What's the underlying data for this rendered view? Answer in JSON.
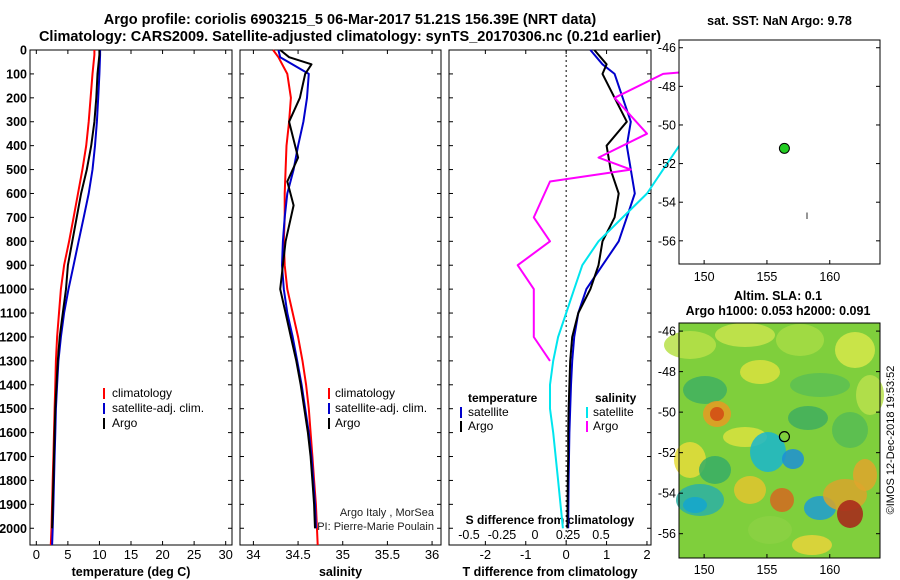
{
  "title": {
    "line1": "Argo profile: coriolis 6903215_5 06-Mar-2017 51.21S 156.39E (NRT data)",
    "line2": "Climatology: CARS2009. Satellite-adjusted climatology: synTS_20170306.nc (0.21d earlier)"
  },
  "colors": {
    "climatology": "#ff0000",
    "satellite": "#0000cc",
    "argo": "#000000",
    "sal_satellite": "#00e5ee",
    "sal_argo": "#ff00ff",
    "dot": "#22cc22"
  },
  "chart_data": [
    {
      "id": "temperature",
      "type": "line",
      "xlabel": "temperature (deg C)",
      "xlim": [
        -1,
        31
      ],
      "xticks": [
        0,
        5,
        10,
        15,
        20,
        25,
        30
      ],
      "ylim": [
        0,
        2070
      ],
      "yticks": [
        0,
        100,
        200,
        300,
        400,
        500,
        600,
        700,
        800,
        900,
        1000,
        1100,
        1200,
        1300,
        1400,
        1500,
        1600,
        1700,
        1800,
        1900,
        2000
      ],
      "legend": [
        "climatology",
        "satellite-adj. clim.",
        "Argo"
      ],
      "series": [
        {
          "name": "climatology",
          "color": "#ff0000",
          "x": [
            9.2,
            9.2,
            8.9,
            8.6,
            8.3,
            7.9,
            7.3,
            6.6,
            5.9,
            5.2,
            4.4,
            3.9,
            3.6,
            3.3,
            3.1,
            3.0,
            2.9,
            2.8,
            2.7,
            2.6,
            2.5,
            2.4,
            2.3
          ],
          "y": [
            0,
            20,
            100,
            200,
            300,
            400,
            500,
            600,
            700,
            800,
            900,
            1000,
            1100,
            1200,
            1300,
            1400,
            1500,
            1600,
            1700,
            1800,
            1900,
            2000,
            2070
          ]
        },
        {
          "name": "satellite-adj. clim.",
          "color": "#0000cc",
          "x": [
            10.1,
            10.1,
            10.0,
            9.8,
            9.6,
            9.3,
            8.9,
            8.3,
            7.5,
            6.7,
            5.9,
            5.1,
            4.4,
            3.9,
            3.5,
            3.3,
            3.1,
            3.0,
            2.9,
            2.8,
            2.7,
            2.6,
            2.5
          ],
          "y": [
            0,
            20,
            100,
            200,
            300,
            400,
            500,
            600,
            700,
            800,
            900,
            1000,
            1100,
            1200,
            1300,
            1400,
            1500,
            1600,
            1700,
            1800,
            1900,
            2000,
            2070
          ]
        },
        {
          "name": "Argo",
          "color": "#000000",
          "x": [
            10.0,
            10.0,
            9.7,
            9.5,
            9.2,
            8.7,
            8.0,
            7.1,
            6.4,
            5.7,
            5.0,
            4.7,
            4.2,
            3.7,
            3.4,
            3.2,
            3.0,
            2.9,
            2.8,
            2.7,
            2.6,
            2.5
          ],
          "y": [
            0,
            20,
            100,
            200,
            300,
            400,
            500,
            600,
            700,
            800,
            900,
            1000,
            1100,
            1200,
            1300,
            1400,
            1500,
            1600,
            1700,
            1800,
            1900,
            2000
          ]
        }
      ]
    },
    {
      "id": "salinity",
      "type": "line",
      "xlabel": "salinity",
      "xlim": [
        33.85,
        36.1
      ],
      "xticks": [
        34,
        34.5,
        35,
        35.5,
        36
      ],
      "ylim": [
        0,
        2070
      ],
      "legend": [
        "climatology",
        "satellite-adj. clim.",
        "Argo"
      ],
      "annotations": [
        "Argo Italy , MorSea",
        "PI: Pierre-Marie Poulain"
      ],
      "series": [
        {
          "name": "climatology",
          "color": "#ff0000",
          "x": [
            34.22,
            34.28,
            34.38,
            34.42,
            34.4,
            34.37,
            34.36,
            34.35,
            34.35,
            34.34,
            34.35,
            34.38,
            34.44,
            34.5,
            34.55,
            34.59,
            34.62,
            34.64,
            34.66,
            34.68,
            34.7,
            34.72
          ],
          "y": [
            0,
            30,
            100,
            200,
            300,
            400,
            500,
            600,
            700,
            800,
            900,
            1000,
            1100,
            1200,
            1300,
            1400,
            1500,
            1600,
            1700,
            1800,
            1900,
            2070
          ]
        },
        {
          "name": "satellite-adj. clim.",
          "color": "#0000cc",
          "x": [
            34.28,
            34.3,
            34.62,
            34.6,
            34.56,
            34.5,
            34.45,
            34.38,
            34.35,
            34.33,
            34.32,
            34.34,
            34.38,
            34.44,
            34.49,
            34.54,
            34.58,
            34.62,
            34.65,
            34.67,
            34.69,
            34.7
          ],
          "y": [
            0,
            30,
            100,
            200,
            300,
            400,
            500,
            600,
            700,
            800,
            900,
            1000,
            1100,
            1200,
            1300,
            1400,
            1500,
            1600,
            1700,
            1800,
            1900,
            2000
          ]
        },
        {
          "name": "Argo",
          "color": "#000000",
          "x": [
            34.3,
            34.4,
            34.65,
            34.58,
            34.52,
            34.4,
            34.5,
            34.38,
            34.45,
            34.36,
            34.33,
            34.3,
            34.36,
            34.42,
            34.48,
            34.53,
            34.57,
            34.61,
            34.64,
            34.66,
            34.68,
            34.69
          ],
          "y": [
            0,
            30,
            60,
            100,
            200,
            300,
            450,
            550,
            650,
            800,
            900,
            1000,
            1100,
            1200,
            1300,
            1400,
            1500,
            1600,
            1700,
            1800,
            1900,
            2000
          ]
        }
      ]
    },
    {
      "id": "difference",
      "type": "line",
      "xlabel": "T difference from climatology",
      "xlabel2": "S difference from climatology",
      "xlim": [
        -2.9,
        2.1
      ],
      "xticks": [
        -2,
        -1,
        0,
        1,
        2
      ],
      "xticks2_labels": [
        "-0.5",
        "-0.25",
        "0",
        "0.25",
        "0.5"
      ],
      "ylim": [
        0,
        2070
      ],
      "legend_temperature_title": "temperature",
      "legend_salinity_title": "salinity",
      "legend": [
        "satellite",
        "Argo"
      ],
      "series": [
        {
          "name": "satellite",
          "group": "temperature",
          "color": "#0000cc",
          "x": [
            0.6,
            0.9,
            1.2,
            1.4,
            1.6,
            1.5,
            1.6,
            1.7,
            1.5,
            1.3,
            0.9,
            0.5,
            0.3,
            0.2,
            0.15,
            0.12,
            0.1,
            0.08,
            0.07,
            0.06,
            0.05
          ],
          "y": [
            0,
            60,
            100,
            200,
            300,
            400,
            500,
            600,
            700,
            800,
            900,
            1000,
            1100,
            1200,
            1300,
            1400,
            1500,
            1600,
            1700,
            1800,
            2000
          ]
        },
        {
          "name": "Argo",
          "group": "temperature",
          "color": "#000000",
          "x": [
            0.7,
            1.0,
            0.9,
            1.2,
            1.5,
            1.0,
            1.1,
            1.3,
            1.2,
            0.9,
            0.8,
            0.6,
            0.3,
            0.15,
            0.1,
            0.08,
            0.06,
            0.05,
            0.05,
            0.04,
            0.03
          ],
          "y": [
            0,
            60,
            100,
            200,
            300,
            400,
            500,
            600,
            700,
            800,
            900,
            1000,
            1100,
            1200,
            1300,
            1400,
            1500,
            1600,
            1700,
            1800,
            2000
          ]
        },
        {
          "name": "satellite",
          "group": "salinity",
          "color": "#00e5ee",
          "x": [
            0.8,
            0.9,
            0.9,
            0.85,
            0.8,
            0.7,
            0.6,
            0.5,
            0.35,
            0.2,
            0.1,
            0.05,
            0.0,
            -0.05,
            -0.08,
            -0.1,
            -0.1,
            -0.08,
            -0.05,
            -0.02
          ],
          "y": [
            0,
            60,
            100,
            200,
            300,
            400,
            500,
            600,
            700,
            800,
            900,
            1000,
            1100,
            1200,
            1300,
            1400,
            1500,
            1600,
            1800,
            2000
          ]
        },
        {
          "name": "Argo",
          "group": "salinity",
          "color": "#ff00ff",
          "x": [
            0.9,
            1.3,
            0.6,
            0.3,
            0.5,
            0.2,
            0.4,
            -0.1,
            -0.2,
            -0.1,
            -0.3,
            -0.2,
            -0.2,
            -0.2,
            -0.1
          ],
          "y": [
            0,
            60,
            100,
            200,
            350,
            450,
            500,
            550,
            700,
            800,
            900,
            1000,
            1100,
            1200,
            1300
          ]
        }
      ]
    },
    {
      "id": "sst-map",
      "type": "scatter",
      "title": "sat. SST: NaN Argo: 9.78",
      "xlim": [
        148,
        164
      ],
      "xticks": [
        150,
        155,
        160
      ],
      "ylim": [
        -57.2,
        -45.6
      ],
      "yticks": [
        -46,
        -48,
        -50,
        -52,
        -54,
        -56
      ],
      "points": [
        {
          "x": 156.39,
          "y": -51.21
        }
      ],
      "annotation": "I"
    },
    {
      "id": "sla-map",
      "type": "heatmap",
      "title": "Altim. SLA: 0.1",
      "title2": "Argo h1000: 0.053 h2000: 0.091",
      "xlim": [
        148,
        164
      ],
      "xticks": [
        150,
        155,
        160
      ],
      "ylim": [
        -57.2,
        -45.6
      ],
      "yticks": [
        -46,
        -48,
        -50,
        -52,
        -54,
        -56
      ],
      "points": [
        {
          "x": 156.39,
          "y": -51.21
        }
      ],
      "credit": "©IMOS 12-Dec-2018 19:53:52"
    }
  ]
}
